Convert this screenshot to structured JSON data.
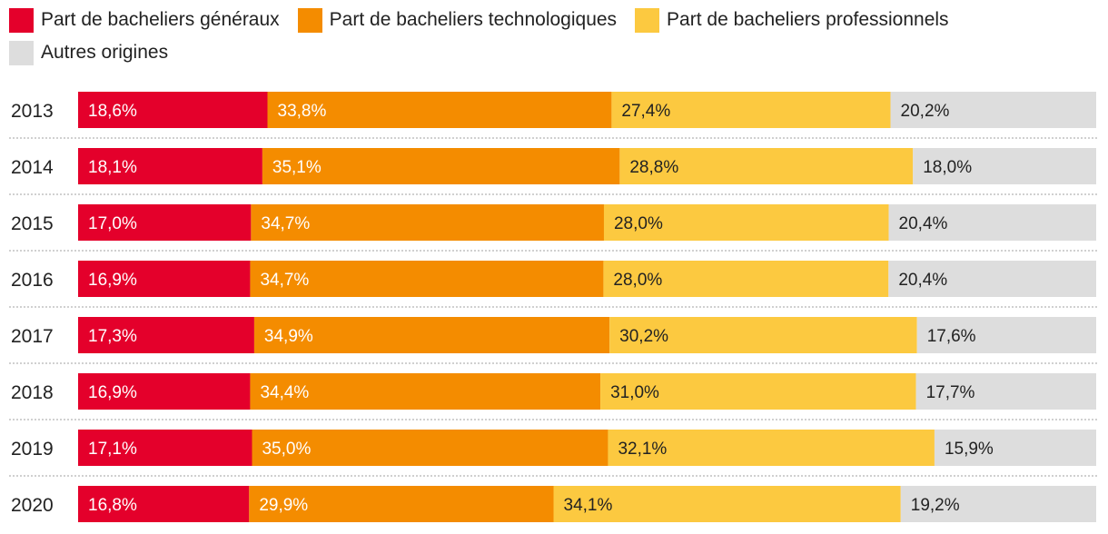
{
  "colors": {
    "generaux": "#e4002b",
    "technologiques": "#f48c00",
    "professionnels": "#fcc940",
    "autres": "#dddddd",
    "separator": "#b5b5b5",
    "year_text": "#222222",
    "label_light": "#ffffff",
    "label_dark": "#222222"
  },
  "chart_data": {
    "type": "bar",
    "orientation": "horizontal",
    "stacked": true,
    "value_format": "percent, comma decimal",
    "xlim": [
      0,
      100
    ],
    "categories": [
      "2013",
      "2014",
      "2015",
      "2016",
      "2017",
      "2018",
      "2019",
      "2020"
    ],
    "series": [
      {
        "name": "Part de bacheliers généraux",
        "key": "generaux",
        "values": [
          18.6,
          18.1,
          17.0,
          16.9,
          17.3,
          16.9,
          17.1,
          16.8
        ],
        "labels": [
          "18,6%",
          "18,1%",
          "17,0%",
          "16,9%",
          "17,3%",
          "16,9%",
          "17,1%",
          "16,8%"
        ]
      },
      {
        "name": "Part de bacheliers technologiques",
        "key": "technologiques",
        "values": [
          33.8,
          35.1,
          34.7,
          34.7,
          34.9,
          34.4,
          35.0,
          29.9
        ],
        "labels": [
          "33,8%",
          "35,1%",
          "34,7%",
          "34,7%",
          "34,9%",
          "34,4%",
          "35,0%",
          "29,9%"
        ]
      },
      {
        "name": "Part de bacheliers professionnels",
        "key": "professionnels",
        "values": [
          27.4,
          28.8,
          28.0,
          28.0,
          30.2,
          31.0,
          32.1,
          34.1
        ],
        "labels": [
          "27,4%",
          "28,8%",
          "28,0%",
          "28,0%",
          "30,2%",
          "31,0%",
          "32,1%",
          "34,1%"
        ]
      },
      {
        "name": "Autres origines",
        "key": "autres",
        "values": [
          20.2,
          18.0,
          20.4,
          20.4,
          17.6,
          17.7,
          15.9,
          19.2
        ],
        "labels": [
          "20,2%",
          "18,0%",
          "20,4%",
          "20,4%",
          "17,6%",
          "17,7%",
          "15,9%",
          "19,2%"
        ]
      }
    ]
  }
}
